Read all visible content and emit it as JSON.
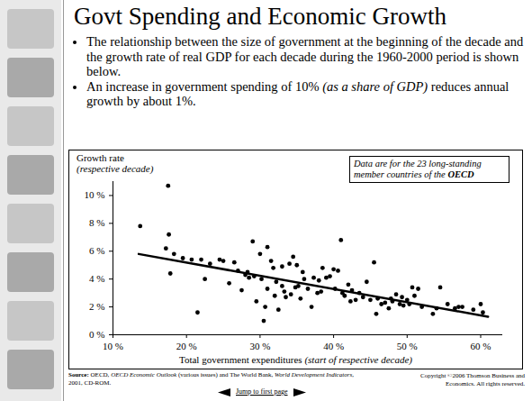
{
  "slide": {
    "title": "Govt Spending and Economic Growth",
    "bullets": [
      [
        {
          "text": "The relationship between the size of government at the beginning of the decade and the growth rate of real GDP for each decade during the 1960-2000 period is shown below."
        }
      ],
      [
        {
          "text": "An increase in government spending of 10% "
        },
        {
          "text": "(as a share of GDP)",
          "italic": true
        },
        {
          "text": " reduces annual growth by about 1%."
        }
      ]
    ],
    "source": [
      {
        "text": "Source: ",
        "bold": true
      },
      {
        "text": "OECD, "
      },
      {
        "text": "OECD Economic Outlook",
        "italic": true
      },
      {
        "text": " (various issues) and The World Bank, "
      },
      {
        "text": "World Development Indicators",
        "italic": true
      },
      {
        "text": ", 2001, CD-ROM."
      }
    ],
    "copyright": "Copyright ©2006  Thomson Business and Economics. All rights reserved.",
    "nav": "Jump to first page"
  },
  "chart_data": {
    "type": "scatter",
    "y_label": "Growth rate",
    "y_label_note": "(respective decade)",
    "x_label": "Total government expenditures",
    "x_label_note": "(start of respective decade)",
    "annotation": [
      {
        "text": "Data are for the 23 long-standing member countries of the "
      },
      {
        "text": "OECD",
        "bold": true
      }
    ],
    "color": "#000000",
    "marker": "circle",
    "x": [
      13.7,
      17.5,
      17.2,
      17.6,
      17.8,
      18.3,
      19.5,
      20.7,
      21.5,
      22,
      22.5,
      23.2,
      24.5,
      25,
      25.8,
      26.5,
      27,
      27.5,
      28,
      28.3,
      28.5,
      29,
      29.2,
      29.5,
      30,
      30.2,
      30.5,
      30.7,
      31,
      31,
      31.5,
      31.8,
      32,
      32.2,
      32.5,
      33,
      33,
      33.3,
      33.5,
      34,
      34.2,
      34.5,
      34.8,
      35,
      35.2,
      35.5,
      35.8,
      36,
      36.5,
      37,
      37.3,
      37.8,
      38,
      38.3,
      38.5,
      39,
      39.5,
      40,
      40.2,
      40.6,
      41,
      41.2,
      41.5,
      42,
      42.3,
      42.5,
      43,
      43.5,
      44,
      44.5,
      45,
      45.5,
      45.8,
      46,
      46.5,
      47,
      47.5,
      47.8,
      48,
      48.5,
      49,
      49.3,
      49.5,
      50,
      50.3,
      50.7,
      51,
      51.5,
      52,
      53.5,
      54,
      54.5,
      55.5,
      56.5,
      57,
      57.5,
      59,
      60,
      60.3
    ],
    "values": [
      7.8,
      10.7,
      6.2,
      7.2,
      4.4,
      5.8,
      5.5,
      5.4,
      1.6,
      5.4,
      4.0,
      5.1,
      5.4,
      5.3,
      3.7,
      5.2,
      4.6,
      3.2,
      4.3,
      4.5,
      4.1,
      6.7,
      4.2,
      2.4,
      5.8,
      4.0,
      1.0,
      2.0,
      3.3,
      6.3,
      5.3,
      4.8,
      2.8,
      3.8,
      1.8,
      3.5,
      4.9,
      3.1,
      2.7,
      5.1,
      2.9,
      5.6,
      3.4,
      5.0,
      3.5,
      2.6,
      4.5,
      4.0,
      3.3,
      2.0,
      4.1,
      3.0,
      3.9,
      3.1,
      4.8,
      4.1,
      4.2,
      4.7,
      3.3,
      4.6,
      6.8,
      3.0,
      2.8,
      3.6,
      2.4,
      3.2,
      2.5,
      3.0,
      2.7,
      3.8,
      2.5,
      5.2,
      1.5,
      2.6,
      2.2,
      2.3,
      1.9,
      2.6,
      2.4,
      2.9,
      2.2,
      2.7,
      2.1,
      2.5,
      2.2,
      3.4,
      2.8,
      3.3,
      2.0,
      1.5,
      1.9,
      3.4,
      2.2,
      1.9,
      2.0,
      2.0,
      1.8,
      2.2,
      1.6
    ],
    "trend_line": {
      "x": [
        13.5,
        61
      ],
      "values": [
        5.8,
        1.3
      ],
      "line_style": "solid"
    },
    "xlim": [
      10,
      63
    ],
    "xticks": [
      {
        "value": 10,
        "label": "10 %"
      },
      {
        "value": 20,
        "label": "20 %"
      },
      {
        "value": 30,
        "label": "30 %"
      },
      {
        "value": 40,
        "label": "40 %"
      },
      {
        "value": 50,
        "label": "50 %"
      },
      {
        "value": 60,
        "label": "60 %"
      }
    ],
    "ylim": [
      0,
      11
    ],
    "yticks": [
      {
        "value": 0,
        "label": "0 %"
      },
      {
        "value": 2,
        "label": "2 %"
      },
      {
        "value": 4,
        "label": "4 %"
      },
      {
        "value": 6,
        "label": "6 %"
      },
      {
        "value": 8,
        "label": "8 %"
      },
      {
        "value": 10,
        "label": "10 %"
      }
    ],
    "grid": false
  }
}
